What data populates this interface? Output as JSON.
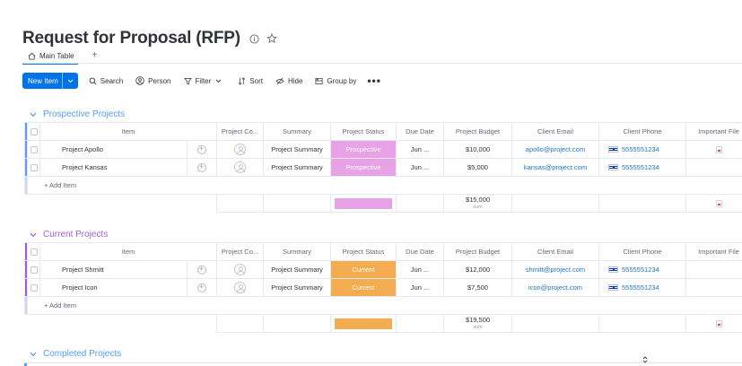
{
  "board": {
    "title": "Request for Proposal (RFP)",
    "tabs": {
      "main": "Main Table",
      "add": "+"
    }
  },
  "toolbar": {
    "new_item": "New Item",
    "search": "Search",
    "person": "Person",
    "filter": "Filter",
    "sort": "Sort",
    "hide": "Hide",
    "group_by": "Group by",
    "more": "•••"
  },
  "columns": {
    "item": "Item",
    "owner": "Project Co...",
    "summary": "Summary",
    "status": "Project Status",
    "due": "Due Date",
    "budget": "Project Budget",
    "email": "Client Email",
    "phone": "Client Phone",
    "files": "Important File"
  },
  "add_item": "+ Add Item",
  "groups": [
    {
      "name": "Prospective Projects",
      "color": "#579bfc",
      "status_color": "#e8a3e6",
      "rows": [
        {
          "name": "Project Apollo",
          "summary": "Project Summary",
          "status": "Prospective",
          "due": "Jun ...",
          "budget": "$10,000",
          "email": "apollo@project.com",
          "phone": "5555551234"
        },
        {
          "name": "Project Kansas",
          "summary": "Project Summary",
          "status": "Prospective",
          "due": "Jun ...",
          "budget": "$5,000",
          "email": "kansas@project.com",
          "phone": "5555551234"
        }
      ],
      "sum": {
        "value": "$15,000",
        "label": "sum"
      }
    },
    {
      "name": "Current Projects",
      "color": "#a25ddc",
      "status_color": "#f3ac4f",
      "rows": [
        {
          "name": "Project Shmitt",
          "summary": "Project Summary",
          "status": "Current",
          "due": "Jun ...",
          "budget": "$12,000",
          "email": "shmitt@project.com",
          "phone": "5555551234"
        },
        {
          "name": "Project Icon",
          "summary": "Project Summary",
          "status": "Current",
          "due": "Jun ...",
          "budget": "$7,500",
          "email": "icon@project.com",
          "phone": "5555551234"
        }
      ],
      "sum": {
        "value": "$19,500",
        "label": "sum"
      }
    },
    {
      "name": "Completed Projects",
      "color": "#579bfc"
    }
  ],
  "icons": {
    "info": "info-icon",
    "favorite": "star-icon",
    "home": "home-icon",
    "search": "search-icon",
    "person": "person-icon",
    "filter": "filter-icon",
    "sort": "sort-icon",
    "hide": "eye-off-icon",
    "group_by": "group-icon",
    "avatar": "avatar-icon",
    "add_update": "add-update-icon",
    "flag": "flag-israel-icon",
    "file": "file-icon"
  }
}
